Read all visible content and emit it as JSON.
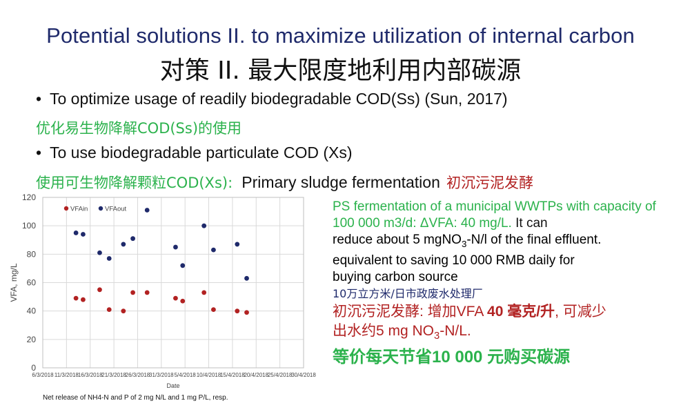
{
  "title_en": "Potential solutions II. to maximize utilization of internal carbon",
  "title_cn": "对策 II. 最大限度地利用内部碳源",
  "bullets": [
    {
      "en": "To optimize usage of readily biodegradable COD(Ss) (Sun, 2017)",
      "cn": "优化易生物降解COD(Ss)的使用"
    },
    {
      "en": "To use biodegradable particulate COD (Xs)",
      "cn": "使用可生物降解颗粒COD(Xs):",
      "en_tail": "Primary sludge fermentation",
      "cn_tail": "初沉污泥发酵"
    }
  ],
  "right": {
    "p1_green": "PS fermentation of a municipal WWTPs with capacity of 100 000 m3/d: ΔVFA: 40 mg/L.",
    "p1_black_a": " It can",
    "p1_black_b": "reduce about 5 mgNO",
    "p1_sub": "3",
    "p1_black_c": "-N/l of the final effluent.",
    "p1_black_d": "equivalent to saving 10 000 RMB daily for",
    "p1_black_e": "buying carbon source",
    "p1_cn": "10万立方米/日市政废水处理厂",
    "p2_red_a": "初沉污泥发酵: 增加VFA ",
    "p2_red_bold": "40 毫克/升",
    "p2_red_b": ", 可减少",
    "p2_red_c": "出水约5 mg NO",
    "p2_red_sub": "3",
    "p2_red_d": "-N/L.",
    "p3_green": "等价每天节省10 000 元购买碳源"
  },
  "footnote": "Net release of NH4-N and P of 2 mg N/L and 1 mg P/L, resp.",
  "colors": {
    "vfa_in": "#b22222",
    "vfa_out": "#1f2a6b",
    "green": "#2bb24c",
    "red": "#b22222"
  },
  "chart_data": {
    "type": "scatter",
    "xlabel": "Date",
    "ylabel": "VFA, mg/L",
    "ylim": [
      0,
      120
    ],
    "yticks": [
      0,
      20,
      40,
      60,
      80,
      100,
      120
    ],
    "xticks": [
      "6/3/2018",
      "11/3/2018",
      "16/3/2018",
      "21/3/2018",
      "26/3/2018",
      "31/3/2018",
      "5/4/2018",
      "10/4/2018",
      "15/4/2018",
      "20/4/2018",
      "25/4/2018",
      "30/4/2018"
    ],
    "x_range_days": [
      0,
      55
    ],
    "grid": true,
    "legend_position": "top-left",
    "series": [
      {
        "name": "VFAin",
        "x_day": [
          7,
          8.5,
          12,
          14,
          17,
          19,
          22,
          28,
          29.5,
          34,
          36,
          41,
          43
        ],
        "values": [
          49,
          48,
          55,
          41,
          40,
          53,
          53,
          49,
          47,
          53,
          41,
          40,
          39
        ]
      },
      {
        "name": "VFAout",
        "x_day": [
          7,
          8.5,
          12,
          14,
          17,
          19,
          22,
          28,
          29.5,
          34,
          36,
          41,
          43
        ],
        "values": [
          95,
          94,
          81,
          77,
          87,
          91,
          111,
          85,
          72,
          100,
          83,
          87,
          63
        ]
      }
    ]
  }
}
